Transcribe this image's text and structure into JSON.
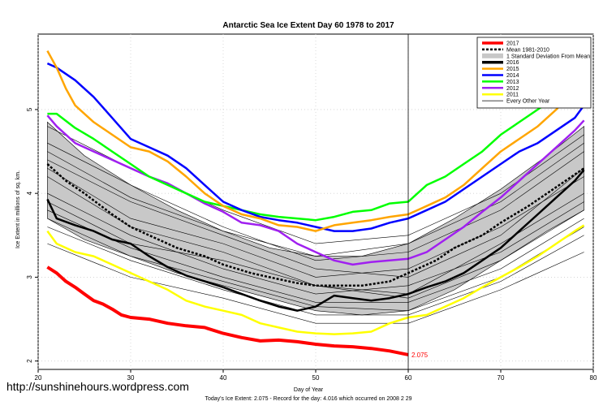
{
  "chart_data": {
    "type": "line",
    "title": "Antarctic Sea Ice Extent Day 60 1978 to 2017",
    "xlabel": "Day of Year",
    "ylabel": "Ice Extent in millions of sq. km.",
    "footer": "Today's Ice Extent: 2.075  - Record for the day: 4.016 which occurred on 2008 2 29",
    "url": "http://sunshinehours.wordpress.com",
    "xlim": [
      20,
      80
    ],
    "ylim": [
      1.9,
      5.9
    ],
    "x_ticks": [
      20,
      30,
      40,
      50,
      60,
      70,
      80
    ],
    "y_ticks": [
      2,
      3,
      4,
      5
    ],
    "current_day": 60,
    "current_value": 2.075,
    "current_label": "2.075",
    "grid": "dotted",
    "legend_position": "top-right",
    "legend": [
      {
        "label": "2017",
        "color": "#ff0000",
        "style": "thick"
      },
      {
        "label": "Mean 1981-2010",
        "color": "#000000",
        "style": "dashed"
      },
      {
        "label": "1 Standard Deviation From Mean",
        "color": "#c8c8c8",
        "style": "band"
      },
      {
        "label": "2016",
        "color": "#000000",
        "style": "thick"
      },
      {
        "label": "2015",
        "color": "#ffa500",
        "style": "line"
      },
      {
        "label": "2014",
        "color": "#0000ff",
        "style": "line"
      },
      {
        "label": "2013",
        "color": "#00ff00",
        "style": "line"
      },
      {
        "label": "2012",
        "color": "#a020f0",
        "style": "line"
      },
      {
        "label": "2011",
        "color": "#ffff00",
        "style": "line"
      },
      {
        "label": "Every Other Year",
        "color": "#000000",
        "style": "thin"
      }
    ],
    "band": {
      "x": [
        21,
        25,
        30,
        35,
        40,
        45,
        50,
        55,
        60,
        65,
        70,
        75,
        79
      ],
      "upper": [
        4.85,
        4.45,
        4.1,
        3.8,
        3.55,
        3.35,
        3.25,
        3.25,
        3.4,
        3.7,
        4.05,
        4.45,
        4.8
      ],
      "lower": [
        3.7,
        3.45,
        3.25,
        3.05,
        2.9,
        2.75,
        2.6,
        2.55,
        2.6,
        2.85,
        3.2,
        3.55,
        3.8
      ]
    },
    "mean": {
      "x": [
        21,
        23,
        25,
        28,
        30,
        33,
        35,
        38,
        40,
        43,
        45,
        48,
        50,
        53,
        55,
        58,
        60,
        63,
        65,
        68,
        70,
        73,
        75,
        77,
        79
      ],
      "y": [
        4.35,
        4.15,
        4.0,
        3.75,
        3.6,
        3.45,
        3.35,
        3.25,
        3.15,
        3.05,
        3.0,
        2.93,
        2.9,
        2.9,
        2.9,
        2.95,
        3.05,
        3.2,
        3.35,
        3.5,
        3.65,
        3.85,
        4.0,
        4.15,
        4.3
      ]
    },
    "series": [
      {
        "name": "2017",
        "color": "#ff0000",
        "width": 4,
        "x": [
          21,
          22,
          23,
          24,
          25,
          26,
          27,
          28,
          29,
          30,
          32,
          34,
          36,
          38,
          40,
          42,
          44,
          46,
          48,
          50,
          52,
          54,
          56,
          58,
          60
        ],
        "y": [
          3.12,
          3.05,
          2.95,
          2.88,
          2.8,
          2.72,
          2.68,
          2.62,
          2.55,
          2.52,
          2.5,
          2.45,
          2.42,
          2.4,
          2.33,
          2.28,
          2.24,
          2.25,
          2.23,
          2.2,
          2.18,
          2.17,
          2.15,
          2.12,
          2.075
        ]
      },
      {
        "name": "2016",
        "color": "#000000",
        "width": 2.5,
        "x": [
          21,
          22,
          24,
          26,
          28,
          30,
          32,
          34,
          36,
          38,
          40,
          42,
          44,
          46,
          48,
          50,
          52,
          54,
          56,
          58,
          60,
          62,
          64,
          66,
          68,
          70,
          72,
          74,
          76,
          78,
          79
        ],
        "y": [
          3.93,
          3.7,
          3.62,
          3.55,
          3.45,
          3.4,
          3.25,
          3.12,
          3.02,
          2.95,
          2.88,
          2.8,
          2.72,
          2.65,
          2.6,
          2.65,
          2.78,
          2.75,
          2.72,
          2.75,
          2.8,
          2.88,
          2.95,
          3.05,
          3.2,
          3.35,
          3.55,
          3.75,
          3.95,
          4.15,
          4.28
        ]
      },
      {
        "name": "2015",
        "color": "#ffa500",
        "width": 2.5,
        "x": [
          21,
          22,
          23,
          24,
          26,
          28,
          30,
          32,
          34,
          36,
          38,
          40,
          42,
          44,
          46,
          48,
          50,
          52,
          54,
          56,
          58,
          60,
          62,
          64,
          66,
          68,
          70,
          72,
          74,
          76,
          78,
          79
        ],
        "y": [
          5.7,
          5.5,
          5.25,
          5.05,
          4.85,
          4.7,
          4.55,
          4.5,
          4.38,
          4.2,
          4.0,
          3.85,
          3.75,
          3.7,
          3.62,
          3.6,
          3.55,
          3.62,
          3.65,
          3.68,
          3.72,
          3.75,
          3.85,
          3.95,
          4.1,
          4.3,
          4.5,
          4.65,
          4.8,
          5.0,
          5.25,
          5.4
        ]
      },
      {
        "name": "2014",
        "color": "#0000ff",
        "width": 2.5,
        "x": [
          21,
          22,
          24,
          26,
          28,
          30,
          32,
          34,
          36,
          38,
          40,
          42,
          44,
          46,
          48,
          50,
          52,
          54,
          56,
          58,
          60,
          62,
          64,
          66,
          68,
          70,
          72,
          74,
          76,
          78,
          79
        ],
        "y": [
          5.55,
          5.5,
          5.35,
          5.15,
          4.9,
          4.65,
          4.55,
          4.45,
          4.3,
          4.1,
          3.9,
          3.8,
          3.72,
          3.68,
          3.65,
          3.6,
          3.55,
          3.55,
          3.58,
          3.65,
          3.7,
          3.8,
          3.9,
          4.05,
          4.2,
          4.35,
          4.5,
          4.6,
          4.75,
          4.9,
          5.05
        ]
      },
      {
        "name": "2013",
        "color": "#00ff00",
        "width": 2.5,
        "x": [
          21,
          22,
          24,
          26,
          28,
          30,
          32,
          34,
          36,
          38,
          40,
          42,
          44,
          46,
          48,
          50,
          52,
          54,
          56,
          58,
          60,
          62,
          64,
          66,
          68,
          70,
          72,
          74,
          76,
          78,
          79
        ],
        "y": [
          4.95,
          4.95,
          4.78,
          4.65,
          4.5,
          4.35,
          4.2,
          4.1,
          4.0,
          3.9,
          3.85,
          3.8,
          3.75,
          3.72,
          3.7,
          3.68,
          3.72,
          3.78,
          3.8,
          3.88,
          3.9,
          4.1,
          4.2,
          4.35,
          4.5,
          4.7,
          4.85,
          5.0,
          5.15,
          5.22,
          5.27
        ]
      },
      {
        "name": "2012",
        "color": "#a020f0",
        "width": 2.5,
        "x": [
          21,
          22,
          24,
          26,
          28,
          30,
          32,
          34,
          36,
          38,
          40,
          42,
          44,
          46,
          48,
          50,
          52,
          54,
          56,
          58,
          60,
          62,
          64,
          66,
          68,
          70,
          72,
          74,
          76,
          78,
          79
        ],
        "y": [
          4.93,
          4.8,
          4.6,
          4.5,
          4.4,
          4.3,
          4.2,
          4.12,
          4.0,
          3.88,
          3.78,
          3.65,
          3.62,
          3.55,
          3.4,
          3.3,
          3.2,
          3.15,
          3.18,
          3.2,
          3.22,
          3.3,
          3.45,
          3.6,
          3.78,
          3.95,
          4.15,
          4.35,
          4.55,
          4.75,
          4.87
        ]
      },
      {
        "name": "2011",
        "color": "#ffff00",
        "width": 2.5,
        "x": [
          21,
          22,
          24,
          26,
          28,
          30,
          32,
          34,
          36,
          38,
          40,
          42,
          44,
          46,
          48,
          50,
          52,
          54,
          56,
          58,
          60,
          62,
          64,
          66,
          68,
          70,
          72,
          74,
          76,
          78,
          79
        ],
        "y": [
          3.55,
          3.4,
          3.3,
          3.25,
          3.15,
          3.05,
          2.95,
          2.85,
          2.72,
          2.65,
          2.6,
          2.55,
          2.45,
          2.4,
          2.35,
          2.33,
          2.32,
          2.33,
          2.35,
          2.45,
          2.52,
          2.55,
          2.65,
          2.75,
          2.88,
          3.0,
          3.12,
          3.25,
          3.4,
          3.55,
          3.62
        ]
      }
    ],
    "other_years": [
      {
        "x": [
          21,
          30,
          40,
          50,
          60,
          70,
          79
        ],
        "y": [
          4.6,
          4.1,
          3.6,
          3.2,
          3.3,
          3.8,
          4.5
        ]
      },
      {
        "x": [
          21,
          30,
          40,
          50,
          60,
          70,
          79
        ],
        "y": [
          4.2,
          3.6,
          3.3,
          2.9,
          2.8,
          3.4,
          4.0
        ]
      },
      {
        "x": [
          21,
          30,
          40,
          50,
          60,
          70,
          79
        ],
        "y": [
          3.8,
          3.35,
          3.0,
          2.7,
          2.7,
          3.1,
          3.7
        ]
      },
      {
        "x": [
          21,
          30,
          40,
          50,
          60,
          70,
          79
        ],
        "y": [
          4.4,
          3.9,
          3.5,
          3.1,
          3.0,
          3.5,
          4.3
        ]
      },
      {
        "x": [
          21,
          30,
          40,
          50,
          60,
          70,
          79
        ],
        "y": [
          3.6,
          3.2,
          2.85,
          2.55,
          2.55,
          2.95,
          3.5
        ]
      },
      {
        "x": [
          21,
          30,
          40,
          50,
          60,
          70,
          79
        ],
        "y": [
          4.0,
          3.5,
          3.1,
          2.8,
          2.9,
          3.3,
          3.9
        ]
      },
      {
        "x": [
          21,
          30,
          40,
          50,
          60,
          70,
          79
        ],
        "y": [
          4.8,
          4.3,
          3.8,
          3.4,
          3.5,
          4.0,
          4.7
        ]
      },
      {
        "x": [
          21,
          30,
          40,
          50,
          60,
          70,
          79
        ],
        "y": [
          3.4,
          3.0,
          2.75,
          2.45,
          2.45,
          2.85,
          3.3
        ]
      },
      {
        "x": [
          21,
          30,
          40,
          50,
          60,
          70,
          79
        ],
        "y": [
          4.3,
          3.7,
          3.4,
          3.0,
          3.1,
          3.6,
          4.2
        ]
      },
      {
        "x": [
          21,
          30,
          40,
          50,
          60,
          70,
          79
        ],
        "y": [
          3.9,
          3.4,
          3.2,
          2.9,
          2.75,
          3.2,
          3.8
        ]
      },
      {
        "x": [
          21,
          30,
          40,
          50,
          60,
          70,
          79
        ],
        "y": [
          4.5,
          3.95,
          3.55,
          3.25,
          3.4,
          3.9,
          4.6
        ]
      },
      {
        "x": [
          21,
          30,
          40,
          50,
          60,
          70,
          79
        ],
        "y": [
          3.7,
          3.25,
          2.95,
          2.65,
          2.6,
          3.0,
          3.6
        ]
      }
    ]
  }
}
